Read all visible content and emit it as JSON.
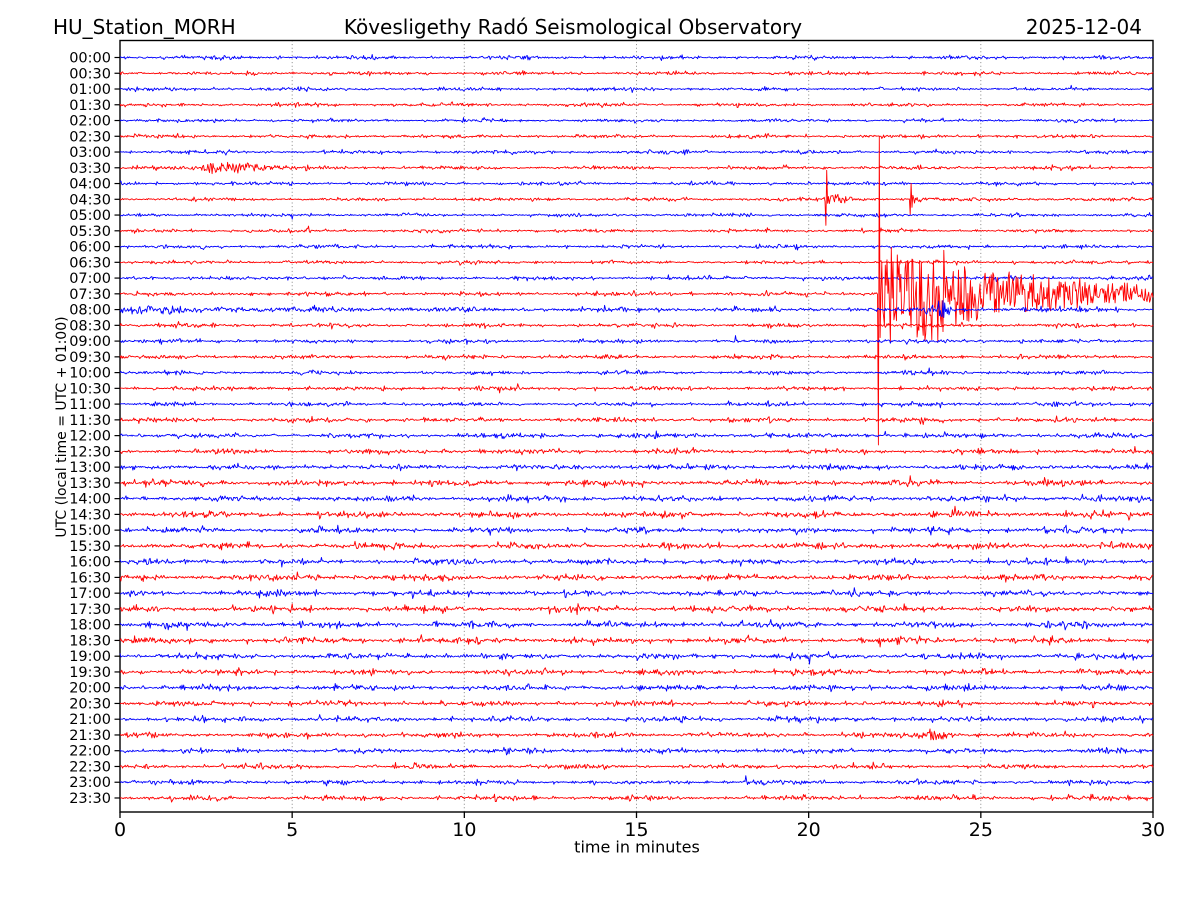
{
  "header": {
    "station": "HU_Station_MORH",
    "title": "Kövesligethy Radó Seismological Observatory",
    "date": "2025-12-04"
  },
  "axes": {
    "xlabel": "time in minutes",
    "ylabel": "UTC (local time = UTC + 01:00)"
  },
  "chart_data": {
    "type": "line",
    "subtype": "helicorder-seismogram",
    "station": "HU_Station_MORH",
    "title": "Kövesligethy Radó Seismological Observatory",
    "date": "2025-12-04",
    "xlabel": "time in minutes",
    "ylabel": "UTC (local time = UTC + 01:00)",
    "xlim": [
      0,
      30
    ],
    "x_ticks": [
      "0",
      "5",
      "10",
      "15",
      "20",
      "25",
      "30"
    ],
    "grid": {
      "vertical": true,
      "style": "dotted",
      "at_minutes": [
        5,
        10,
        15,
        20,
        25
      ],
      "color": "#888888"
    },
    "minutes_per_row": 30,
    "colors": {
      "blue": "#0000ff",
      "red": "#ff0000"
    },
    "notable_events": [
      {
        "row": "03:30",
        "minutes": "2.2-4.9",
        "note": "small noise burst"
      },
      {
        "row": "04:30",
        "minutes": "20.5",
        "note": "sharp local spike, ~1.7 row heights"
      },
      {
        "row": "04:30",
        "minutes": "23.0",
        "note": "smaller sharp spike, ~1 row height"
      },
      {
        "row": "07:30",
        "minutes": "22.1",
        "note": "large earthquake onset; clipped peak spans about +/-9.5 row heights (02:30 down to 12:30 rows); strong coda decays through end of line"
      },
      {
        "row": "08:00",
        "minutes": "0-6",
        "note": "elevated amplitude continuing coda of 07:30 event"
      },
      {
        "row": "08:00",
        "minutes": "23.9",
        "note": "small burst"
      },
      {
        "row": "21:30",
        "minutes": "23.7",
        "note": "minor noise burst"
      }
    ],
    "rows": [
      {
        "time": "00:00",
        "color": "blue",
        "noise": 2.1,
        "events": []
      },
      {
        "time": "00:30",
        "color": "red",
        "noise": 2.2,
        "events": []
      },
      {
        "time": "01:00",
        "color": "blue",
        "noise": 2.1,
        "events": []
      },
      {
        "time": "01:30",
        "color": "red",
        "noise": 2.1,
        "events": []
      },
      {
        "time": "02:00",
        "color": "blue",
        "noise": 2.0,
        "events": []
      },
      {
        "time": "02:30",
        "color": "red",
        "noise": 2.1,
        "events": []
      },
      {
        "time": "03:00",
        "color": "blue",
        "noise": 2.1,
        "events": []
      },
      {
        "time": "03:30",
        "color": "red",
        "noise": 2.2,
        "events": [
          {
            "type": "burst",
            "t": 2.7,
            "amp": 5.0,
            "dur": 0.35
          },
          {
            "type": "burst",
            "t": 3.4,
            "amp": 5.5,
            "dur": 0.55
          },
          {
            "type": "burst",
            "t": 4.3,
            "amp": 3.5,
            "dur": 0.5
          }
        ]
      },
      {
        "time": "04:00",
        "color": "blue",
        "noise": 2.1,
        "events": []
      },
      {
        "time": "04:30",
        "color": "red",
        "noise": 2.1,
        "events": [
          {
            "type": "spike",
            "t": 20.5,
            "amp": 26
          },
          {
            "type": "coda",
            "t": 20.55,
            "amp": 8,
            "tau": 0.5
          },
          {
            "type": "spike",
            "t": 22.95,
            "amp": 15
          },
          {
            "type": "coda",
            "t": 23.0,
            "amp": 5,
            "tau": 0.35
          }
        ]
      },
      {
        "time": "05:00",
        "color": "blue",
        "noise": 2.0,
        "events": []
      },
      {
        "time": "05:30",
        "color": "red",
        "noise": 2.0,
        "events": []
      },
      {
        "time": "06:00",
        "color": "blue",
        "noise": 2.2,
        "events": []
      },
      {
        "time": "06:30",
        "color": "red",
        "noise": 2.1,
        "events": []
      },
      {
        "time": "07:00",
        "color": "blue",
        "noise": 2.3,
        "events": []
      },
      {
        "time": "07:30",
        "color": "red",
        "noise": 2.4,
        "events": [
          {
            "type": "spike",
            "t": 22.02,
            "amp": 151
          },
          {
            "type": "coda",
            "t": 22.12,
            "amp": 46,
            "tau": 5.0
          },
          {
            "type": "burst",
            "t": 22.45,
            "amp": 18,
            "dur": 0.3
          },
          {
            "type": "burst",
            "t": 23.7,
            "amp": 26,
            "dur": 0.5
          },
          {
            "type": "burst",
            "t": 24.15,
            "amp": 18,
            "dur": 0.3
          }
        ]
      },
      {
        "time": "08:00",
        "color": "blue",
        "noise": 2.8,
        "events": [
          {
            "type": "coda",
            "t": 0,
            "amp": 3.5,
            "tau": 6
          },
          {
            "type": "burst",
            "t": 23.85,
            "amp": 11,
            "dur": 0.25
          }
        ]
      },
      {
        "time": "08:30",
        "color": "red",
        "noise": 2.5,
        "events": []
      },
      {
        "time": "09:00",
        "color": "blue",
        "noise": 2.3,
        "events": []
      },
      {
        "time": "09:30",
        "color": "red",
        "noise": 2.4,
        "events": []
      },
      {
        "time": "10:00",
        "color": "blue",
        "noise": 2.3,
        "events": []
      },
      {
        "time": "10:30",
        "color": "red",
        "noise": 2.4,
        "events": []
      },
      {
        "time": "11:00",
        "color": "blue",
        "noise": 2.4,
        "events": []
      },
      {
        "time": "11:30",
        "color": "red",
        "noise": 2.8,
        "events": []
      },
      {
        "time": "12:00",
        "color": "blue",
        "noise": 2.9,
        "events": []
      },
      {
        "time": "12:30",
        "color": "red",
        "noise": 2.9,
        "events": []
      },
      {
        "time": "13:00",
        "color": "blue",
        "noise": 3.2,
        "events": []
      },
      {
        "time": "13:30",
        "color": "red",
        "noise": 3.6,
        "events": []
      },
      {
        "time": "14:00",
        "color": "blue",
        "noise": 3.5,
        "events": []
      },
      {
        "time": "14:30",
        "color": "red",
        "noise": 3.7,
        "events": []
      },
      {
        "time": "15:00",
        "color": "blue",
        "noise": 3.4,
        "events": []
      },
      {
        "time": "15:30",
        "color": "red",
        "noise": 3.8,
        "events": []
      },
      {
        "time": "16:00",
        "color": "blue",
        "noise": 3.4,
        "events": []
      },
      {
        "time": "16:30",
        "color": "red",
        "noise": 3.6,
        "events": []
      },
      {
        "time": "17:00",
        "color": "blue",
        "noise": 3.5,
        "events": []
      },
      {
        "time": "17:30",
        "color": "red",
        "noise": 3.7,
        "events": []
      },
      {
        "time": "18:00",
        "color": "blue",
        "noise": 3.6,
        "events": []
      },
      {
        "time": "18:30",
        "color": "red",
        "noise": 3.8,
        "events": []
      },
      {
        "time": "19:00",
        "color": "blue",
        "noise": 3.4,
        "events": []
      },
      {
        "time": "19:30",
        "color": "red",
        "noise": 3.5,
        "events": []
      },
      {
        "time": "20:00",
        "color": "blue",
        "noise": 3.3,
        "events": []
      },
      {
        "time": "20:30",
        "color": "red",
        "noise": 3.2,
        "events": []
      },
      {
        "time": "21:00",
        "color": "blue",
        "noise": 3.1,
        "events": []
      },
      {
        "time": "21:30",
        "color": "red",
        "noise": 3.1,
        "events": [
          {
            "type": "burst",
            "t": 23.7,
            "amp": 5,
            "dur": 0.5
          }
        ]
      },
      {
        "time": "22:00",
        "color": "blue",
        "noise": 2.9,
        "events": []
      },
      {
        "time": "22:30",
        "color": "red",
        "noise": 2.9,
        "events": []
      },
      {
        "time": "23:00",
        "color": "blue",
        "noise": 2.7,
        "events": []
      },
      {
        "time": "23:30",
        "color": "red",
        "noise": 2.8,
        "events": []
      }
    ]
  }
}
